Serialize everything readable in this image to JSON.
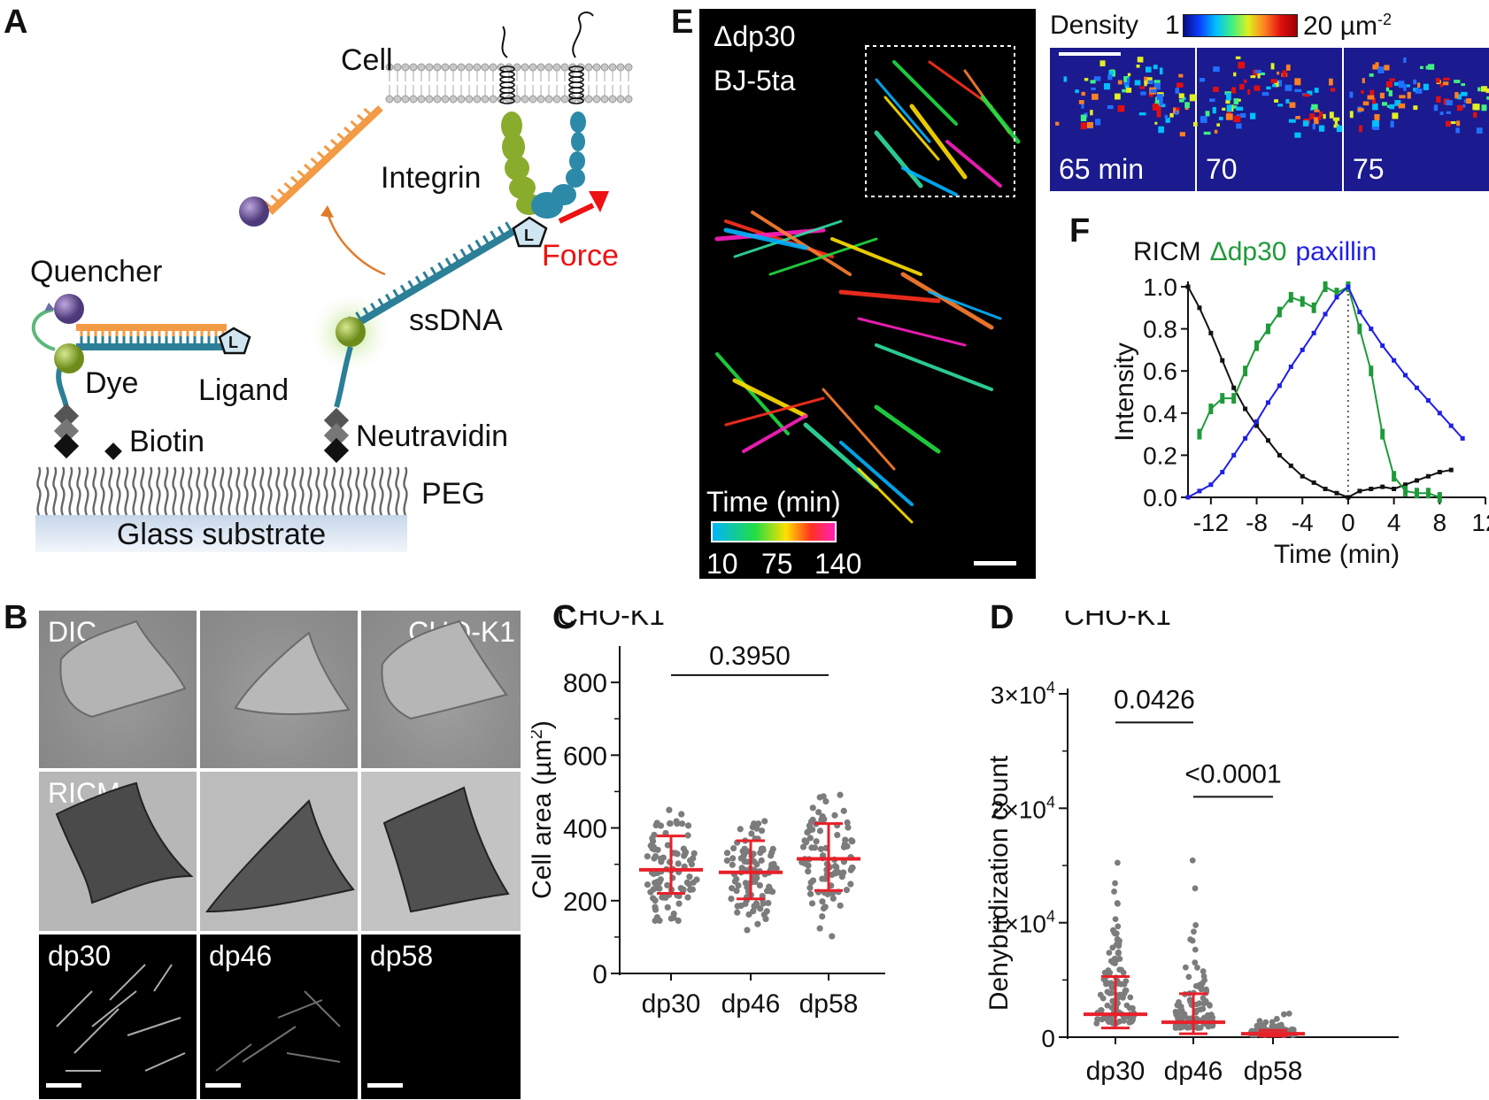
{
  "panel_letters": {
    "A": "A",
    "B": "B",
    "C": "C",
    "D": "D",
    "E": "E",
    "F": "F"
  },
  "panelA": {
    "cell": "Cell",
    "integrin": "Integrin",
    "quencher": "Quencher",
    "dye": "Dye",
    "ligand": "Ligand",
    "ligand_symbol": "L",
    "ligand_symbol_2": "L",
    "force": "Force",
    "ssdna": "ssDNA",
    "biotin": "Biotin",
    "neutravidin": "Neutravidin",
    "peg": "PEG",
    "substrate": "Glass substrate"
  },
  "panelB": {
    "top_labels": [
      "DIC",
      "",
      "CHO-K1"
    ],
    "mid_labels": [
      "RICM",
      "",
      ""
    ],
    "bottom_labels": [
      "dp30",
      "dp46",
      "dp58"
    ]
  },
  "panelE": {
    "construct": "Δdp30",
    "cell_line": "BJ-5ta",
    "time_title": "Time (min)",
    "time_ticks": [
      "10",
      "75",
      "140"
    ],
    "density_label": "Density",
    "density_min": "1",
    "density_max": "20 µm",
    "density_max_exp": "-2",
    "frames": [
      "65 min",
      "70",
      "75"
    ]
  },
  "colors": {
    "red": "#e8202a",
    "gray": "#7c7c7c",
    "green": "#1f9a3a",
    "blue": "#1f1fe6",
    "black": "#111111"
  },
  "chart_data": [
    {
      "id": "C",
      "type": "scatter",
      "title": "CHO-K1",
      "xlabel": "",
      "ylabel": "Cell area (µm²)",
      "ylabel_main": "Cell area (µm",
      "ylabel_sup": "2",
      "ylabel_end": ")",
      "categories": [
        "dp30",
        "dp46",
        "dp58"
      ],
      "ylim": [
        0,
        900
      ],
      "yticks": [
        "0",
        "200",
        "400",
        "600",
        "800"
      ],
      "median": [
        285,
        278,
        315
      ],
      "q1": [
        220,
        205,
        228
      ],
      "q3": [
        378,
        365,
        412
      ],
      "annotation": "0.3950"
    },
    {
      "id": "D",
      "type": "scatter",
      "title": "CHO-K1",
      "xlabel": "",
      "ylabel": "Dehybridization count",
      "categories": [
        "dp30",
        "dp46",
        "dp58"
      ],
      "ylim": [
        0,
        30000
      ],
      "yticks": [
        "0",
        "1×10",
        "2×10",
        "3×10"
      ],
      "ytick_exp": "4",
      "median": [
        2000,
        1300,
        300
      ],
      "q1": [
        800,
        300,
        100
      ],
      "q3": [
        5300,
        3800,
        600
      ],
      "annotations": [
        "0.0426",
        "<0.0001"
      ]
    },
    {
      "id": "F",
      "type": "line",
      "title_parts": [
        "RICM",
        "Δdp30",
        "paxillin"
      ],
      "xlabel": "Time (min)",
      "ylabel": "Intensity",
      "xlim": [
        -14,
        12
      ],
      "ylim": [
        0,
        1.0
      ],
      "xticks": [
        "-12",
        "-8",
        "-4",
        "0",
        "4",
        "8",
        "12"
      ],
      "yticks": [
        "0.0",
        "0.2",
        "0.4",
        "0.6",
        "0.8",
        "1.0"
      ],
      "x": [
        -14,
        -13,
        -12,
        -11,
        -10,
        -9,
        -8,
        -7,
        -6,
        -5,
        -4,
        -3,
        -2,
        -1,
        0,
        1,
        2,
        3,
        4,
        5,
        6,
        7,
        8,
        9,
        10,
        11
      ],
      "series": [
        {
          "name": "RICM",
          "values": [
            1.0,
            0.9,
            0.78,
            0.65,
            0.52,
            0.42,
            0.34,
            0.27,
            0.2,
            0.15,
            0.1,
            0.07,
            0.04,
            0.02,
            0.0,
            0.03,
            0.04,
            0.05,
            0.04,
            0.06,
            0.08,
            0.1,
            0.12,
            0.13,
            null,
            null
          ]
        },
        {
          "name": "Δdp30",
          "values": [
            null,
            0.3,
            0.42,
            0.47,
            0.47,
            0.6,
            0.72,
            0.8,
            0.88,
            0.95,
            0.93,
            0.9,
            1.0,
            0.97,
            1.0,
            0.8,
            0.6,
            0.3,
            0.1,
            0.03,
            0.02,
            0.02,
            0.0,
            null,
            null,
            null
          ]
        },
        {
          "name": "paxillin",
          "values": [
            0.0,
            0.03,
            0.06,
            0.12,
            0.2,
            0.28,
            0.36,
            0.45,
            0.53,
            0.62,
            0.7,
            0.78,
            0.87,
            0.95,
            1.0,
            0.88,
            0.8,
            0.72,
            0.65,
            0.58,
            0.52,
            0.46,
            0.4,
            0.34,
            0.28,
            null
          ]
        }
      ]
    }
  ]
}
